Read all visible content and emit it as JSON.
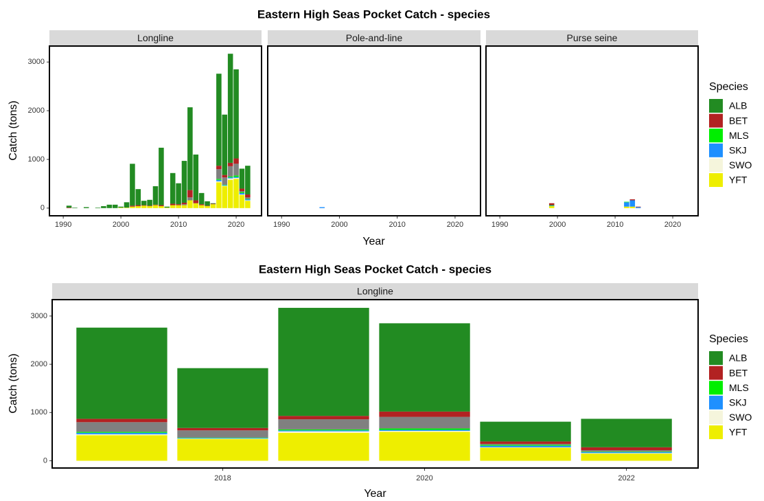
{
  "chart_data": [
    {
      "type": "bar",
      "stacked": true,
      "title": "Eastern High Seas Pocket Catch - species",
      "x_label": "Year",
      "y_label": "Catch (tons)",
      "legend_title": "Species",
      "series": [
        {
          "name": "ALB",
          "color": "#228b22"
        },
        {
          "name": "BET",
          "color": "#b22222"
        },
        {
          "name": null,
          "color": "#808080"
        },
        {
          "name": "MLS",
          "color": "#00ee00"
        },
        {
          "name": "SKJ",
          "color": "#1e90ff"
        },
        {
          "name": "SWO",
          "color": "#f5f5dc"
        },
        {
          "name": "YFT",
          "color": "#eeee00"
        }
      ],
      "xlim": [
        1987.6,
        2024.4
      ],
      "xticks": [
        1990,
        2000,
        2010,
        2020
      ],
      "ylim": [
        -158,
        3328
      ],
      "yticks": [
        0,
        1000,
        2000,
        3000
      ],
      "facets": [
        {
          "title": "Longline",
          "x": [
            1991,
            1992,
            1994,
            1996,
            1997,
            1998,
            1999,
            2000,
            2001,
            2002,
            2003,
            2004,
            2005,
            2006,
            2007,
            2008,
            2009,
            2010,
            2011,
            2012,
            2013,
            2014,
            2015,
            2016,
            2017,
            2018,
            2019,
            2020,
            2021,
            2022
          ],
          "values": [
            [
              40,
              10,
              20,
              10,
              40,
              70,
              70,
              20,
              110,
              860,
              330,
              90,
              120,
              380,
              1180,
              20,
              630,
              430,
              860,
              1700,
              940,
              230,
              90,
              10,
              1890,
              1240,
              2240,
              1830,
              410,
              590
            ],
            [
              10,
              0,
              0,
              0,
              0,
              0,
              0,
              0,
              0,
              20,
              20,
              10,
              10,
              10,
              20,
              0,
              30,
              20,
              30,
              150,
              60,
              20,
              10,
              10,
              70,
              50,
              70,
              110,
              50,
              60
            ],
            [
              0,
              0,
              0,
              0,
              0,
              0,
              0,
              0,
              0,
              0,
              0,
              0,
              0,
              0,
              0,
              0,
              0,
              0,
              20,
              60,
              0,
              0,
              0,
              0,
              200,
              150,
              210,
              240,
              20,
              30
            ],
            [
              0,
              0,
              0,
              0,
              0,
              0,
              0,
              0,
              0,
              0,
              0,
              0,
              0,
              0,
              0,
              0,
              0,
              0,
              0,
              0,
              0,
              0,
              0,
              0,
              20,
              10,
              20,
              30,
              20,
              10
            ],
            [
              0,
              0,
              0,
              0,
              0,
              0,
              0,
              0,
              0,
              0,
              0,
              0,
              0,
              0,
              0,
              0,
              0,
              0,
              0,
              0,
              0,
              0,
              0,
              0,
              30,
              10,
              20,
              20,
              30,
              20
            ],
            [
              0,
              0,
              0,
              0,
              0,
              0,
              0,
              0,
              0,
              0,
              0,
              0,
              0,
              0,
              0,
              0,
              0,
              0,
              0,
              0,
              0,
              0,
              0,
              0,
              20,
              10,
              30,
              20,
              10,
              10
            ],
            [
              0,
              0,
              0,
              0,
              0,
              0,
              0,
              10,
              10,
              30,
              40,
              50,
              40,
              60,
              40,
              10,
              60,
              60,
              60,
              160,
              100,
              60,
              40,
              80,
              530,
              450,
              580,
              600,
              270,
              150
            ]
          ]
        },
        {
          "title": "Pole-and-line",
          "x": [
            1997
          ],
          "values": [
            [
              0
            ],
            [
              0
            ],
            [
              0
            ],
            [
              0
            ],
            [
              20
            ],
            [
              0
            ],
            [
              0
            ]
          ]
        },
        {
          "title": "Purse seine",
          "x": [
            1999,
            2012,
            2013,
            2014
          ],
          "values": [
            [
              0,
              0,
              0,
              0
            ],
            [
              40,
              0,
              20,
              10
            ],
            [
              0,
              0,
              0,
              0
            ],
            [
              10,
              10,
              0,
              0
            ],
            [
              10,
              90,
              130,
              20
            ],
            [
              0,
              0,
              0,
              0
            ],
            [
              40,
              30,
              30,
              0
            ]
          ]
        }
      ]
    },
    {
      "type": "bar",
      "stacked": true,
      "title": "Eastern High Seas Pocket Catch - species",
      "x_label": "Year",
      "y_label": "Catch (tons)",
      "legend_title": "Species",
      "series": [
        {
          "name": "ALB",
          "color": "#228b22"
        },
        {
          "name": "BET",
          "color": "#b22222"
        },
        {
          "name": null,
          "color": "#808080"
        },
        {
          "name": "MLS",
          "color": "#00ee00"
        },
        {
          "name": "SKJ",
          "color": "#1e90ff"
        },
        {
          "name": "SWO",
          "color": "#f5f5dc"
        },
        {
          "name": "YFT",
          "color": "#eeee00"
        }
      ],
      "xlim": [
        2016.31,
        2022.71
      ],
      "xticks": [
        2018,
        2020,
        2022
      ],
      "ylim": [
        -150,
        3340
      ],
      "yticks": [
        0,
        1000,
        2000,
        3000
      ],
      "facets": [
        {
          "title": "Longline",
          "x": [
            2017,
            2018,
            2019,
            2020,
            2021,
            2022
          ],
          "values": [
            [
              1890,
              1240,
              2240,
              1830,
              410,
              590
            ],
            [
              70,
              50,
              70,
              110,
              50,
              60
            ],
            [
              200,
              150,
              210,
              240,
              20,
              30
            ],
            [
              20,
              10,
              20,
              30,
              20,
              10
            ],
            [
              30,
              10,
              20,
              20,
              30,
              20
            ],
            [
              20,
              10,
              30,
              20,
              10,
              10
            ],
            [
              530,
              450,
              580,
              600,
              270,
              150
            ]
          ]
        }
      ]
    }
  ]
}
